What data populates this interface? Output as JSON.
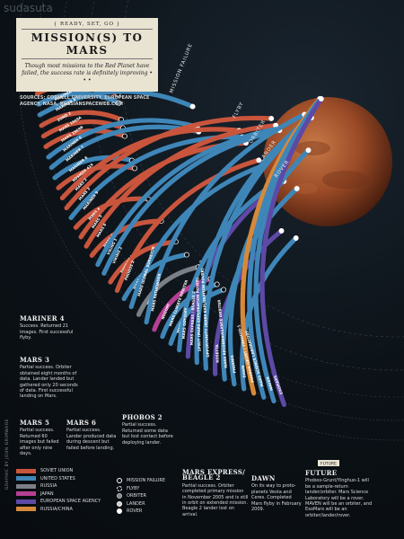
{
  "watermark": "sudasuta",
  "header": {
    "kicker": "{ READY, SET, GO }",
    "title": "MISSION(S) TO MARS",
    "subtitle": "Though most missions to the Red Planet have failed, the success rate is definitely improving • • •",
    "sources": "SOURCES: CORNELL UNIVERSITY, EUROPEAN SPACE AGENCY, NASA, RUSSIANSPACEWEB.COM"
  },
  "rings": {
    "mission_failure": "MISSION FAILURE",
    "flyby": "FLYBY",
    "orbiter": "ORBITER",
    "lander": "LANDER",
    "rover": "ROVER"
  },
  "colors": {
    "soviet_union": "#c9553d",
    "united_states": "#3f86b8",
    "russia": "#7b7f86",
    "japan": "#b53f93",
    "european_space_agency": "#5d49a6",
    "russia_china": "#d6893a",
    "mars": "#a4532d"
  },
  "missions": [
    {
      "name": "MARSNIK 1",
      "agency": "soviet_union",
      "outcome": "failure"
    },
    {
      "name": "MARSNIK 2",
      "agency": "soviet_union",
      "outcome": "failure"
    },
    {
      "name": "SPUTNIK 22",
      "agency": "soviet_union",
      "outcome": "failure"
    },
    {
      "name": "MARS 1",
      "agency": "soviet_union",
      "outcome": "failure"
    },
    {
      "name": "SPUTNIK 24",
      "agency": "soviet_union",
      "outcome": "failure"
    },
    {
      "name": "MARINER 3",
      "agency": "united_states",
      "outcome": "failure"
    },
    {
      "name": "MARINER 4",
      "agency": "united_states",
      "outcome": "flyby"
    },
    {
      "name": "ZOND 2",
      "agency": "soviet_union",
      "outcome": "failure"
    },
    {
      "name": "MARS 1969A",
      "agency": "soviet_union",
      "outcome": "failure"
    },
    {
      "name": "MARS 1969B",
      "agency": "soviet_union",
      "outcome": "failure"
    },
    {
      "name": "MARINER 6",
      "agency": "united_states",
      "outcome": "flyby"
    },
    {
      "name": "MARINER 7",
      "agency": "united_states",
      "outcome": "flyby"
    },
    {
      "name": "MARINER 8",
      "agency": "united_states",
      "outcome": "failure"
    },
    {
      "name": "KOSMOS 419",
      "agency": "soviet_union",
      "outcome": "failure"
    },
    {
      "name": "MARS 2",
      "agency": "soviet_union",
      "outcome": "orbiter"
    },
    {
      "name": "MARS 3",
      "agency": "soviet_union",
      "outcome": "lander"
    },
    {
      "name": "MARINER 9",
      "agency": "united_states",
      "outcome": "orbiter"
    },
    {
      "name": "MARS 4",
      "agency": "soviet_union",
      "outcome": "failure"
    },
    {
      "name": "MARS 5",
      "agency": "soviet_union",
      "outcome": "orbiter"
    },
    {
      "name": "MARS 6",
      "agency": "soviet_union",
      "outcome": "lander"
    },
    {
      "name": "MARS 7",
      "agency": "soviet_union",
      "outcome": "failure"
    },
    {
      "name": "VIKING 1",
      "agency": "united_states",
      "outcome": "lander"
    },
    {
      "name": "VIKING 2",
      "agency": "united_states",
      "outcome": "lander"
    },
    {
      "name": "PHOBOS 1",
      "agency": "soviet_union",
      "outcome": "failure"
    },
    {
      "name": "PHOBOS 2",
      "agency": "soviet_union",
      "outcome": "orbiter"
    },
    {
      "name": "MARS OBSERVER",
      "agency": "united_states",
      "outcome": "failure"
    },
    {
      "name": "MARS GLOBAL SURVEYOR",
      "agency": "united_states",
      "outcome": "orbiter"
    },
    {
      "name": "MARS 96",
      "agency": "russia",
      "outcome": "failure"
    },
    {
      "name": "MARS PATHFINDER",
      "agency": "united_states",
      "outcome": "rover"
    },
    {
      "name": "NOZOMI",
      "agency": "japan",
      "outcome": "failure"
    },
    {
      "name": "MARS CLIMATE ORBITER",
      "agency": "united_states",
      "outcome": "failure"
    },
    {
      "name": "MARS POLAR LANDER / DEEP SPACE 2",
      "agency": "united_states",
      "outcome": "failure"
    },
    {
      "name": "MARS ODYSSEY",
      "agency": "united_states",
      "outcome": "orbiter"
    },
    {
      "name": "MARS EXPRESS / BEAGLE 2",
      "agency": "european_space_agency",
      "outcome": "orbiter"
    },
    {
      "name": "SPIRIT (MARS EXPLORATION ROVER)",
      "agency": "united_states",
      "outcome": "rover"
    },
    {
      "name": "OPPORTUNITY (MARS EXPLORATION ROVER)",
      "agency": "united_states",
      "outcome": "rover"
    },
    {
      "name": "ROSETTA",
      "agency": "european_space_agency",
      "outcome": "flyby"
    },
    {
      "name": "MARS RECONNAISSANCE ORBITER",
      "agency": "united_states",
      "outcome": "orbiter"
    },
    {
      "name": "PHOENIX",
      "agency": "united_states",
      "outcome": "lander"
    },
    {
      "name": "DAWN",
      "agency": "united_states",
      "outcome": "flyby"
    },
    {
      "name": "PHOBOS-GRUNT / YINGHUO-1",
      "agency": "russia_china",
      "outcome": "future"
    },
    {
      "name": "MARS SCIENCE LABORATORY",
      "agency": "united_states",
      "outcome": "future"
    },
    {
      "name": "MAVEN",
      "agency": "united_states",
      "outcome": "future"
    },
    {
      "name": "EXOMARS",
      "agency": "european_space_agency",
      "outcome": "future"
    }
  ],
  "future_label": "FUTURE",
  "annotations": {
    "mariner4": {
      "title": "MARINER 4",
      "text": "Success. Returned 21 images. First successful flyby."
    },
    "mars3": {
      "title": "MARS 3",
      "text": "Partial success. Orbiter obtained eight months of data. Lander landed but gathered only 20 seconds of data. First successful landing on Mars."
    },
    "mars5": {
      "title": "MARS 5",
      "text": "Partial success. Returned 60 images but failed after only nine days."
    },
    "mars6": {
      "title": "MARS 6",
      "text": "Partial success. Lander produced data during descent but failed before landing."
    },
    "phobos2": {
      "title": "PHOBOS 2",
      "text": "Partial success. Returned some data but lost contact before deploying lander."
    },
    "mars_express": {
      "title": "MARS EXPRESS/ BEAGLE 2",
      "text": "Partial success. Orbiter completed primary mission in November 2005 and is still in orbit on extended mission. Beagle 2 lander lost on arrival."
    },
    "dawn": {
      "title": "DAWN",
      "text": "On its way to proto-planets Vesta and Ceres. Completed Mars flyby in February 2009."
    },
    "future": {
      "title": "FUTURE",
      "text": "Phobos-Grunt/Yinghuo-1 will be a sample-return lander/orbiter. Mars Science Laboratory will be a rover. MAVEN will be an orbiter, and ExoMars will be an orbiter/lander/rover."
    }
  },
  "legend": {
    "agencies": [
      {
        "key": "soviet_union",
        "label": "SOVIET UNION"
      },
      {
        "key": "united_states",
        "label": "UNITED STATES"
      },
      {
        "key": "russia",
        "label": "RUSSIA"
      },
      {
        "key": "japan",
        "label": "JAPAN"
      },
      {
        "key": "european_space_agency",
        "label": "EUROPEAN SPACE AGENCY"
      },
      {
        "key": "russia_china",
        "label": "RUSSIA/CHINA"
      }
    ],
    "outcomes": [
      {
        "key": "failure",
        "label": "MISSION FAILURE"
      },
      {
        "key": "flyby",
        "label": "FLYBY"
      },
      {
        "key": "orbiter",
        "label": "ORBITER"
      },
      {
        "key": "lander",
        "label": "LANDER"
      },
      {
        "key": "rover",
        "label": "ROVER"
      }
    ]
  },
  "credit": "GRAPHIC BY JOHN GRIMWADE"
}
